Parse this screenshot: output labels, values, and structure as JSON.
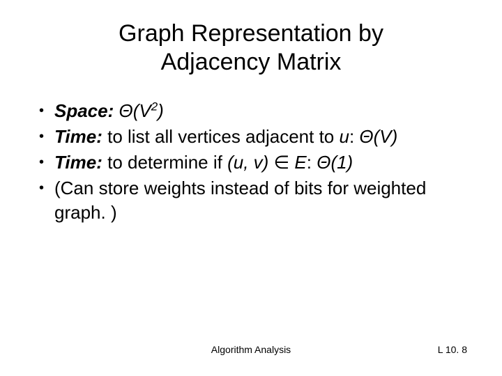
{
  "colors": {
    "background": "#ffffff",
    "text": "#000000"
  },
  "typography": {
    "title_fontsize": 34,
    "body_fontsize": 26,
    "footer_fontsize": 14,
    "font_family": "Arial"
  },
  "title_line1": "Graph Representation by",
  "title_line2": "Adjacency Matrix",
  "bullets": {
    "b1": {
      "label": "Space:",
      "theta": "Θ(V",
      "sup": "2",
      "close": ")"
    },
    "b2": {
      "label": "Time:",
      "lead": " to list all vertices adjacent to ",
      "var": "u",
      "colon": ":",
      "theta": "Θ(V)"
    },
    "b3": {
      "label": "Time:",
      "lead": " to determine if ",
      "uv": "(u, v)",
      "elem": " ∈ ",
      "evar": "E",
      "colon": ": ",
      "theta": "Θ(1)"
    },
    "b4": {
      "text": "(Can store weights instead of bits for weighted graph. )"
    }
  },
  "footer": {
    "center": "Algorithm Analysis",
    "right": "L 10. 8"
  }
}
